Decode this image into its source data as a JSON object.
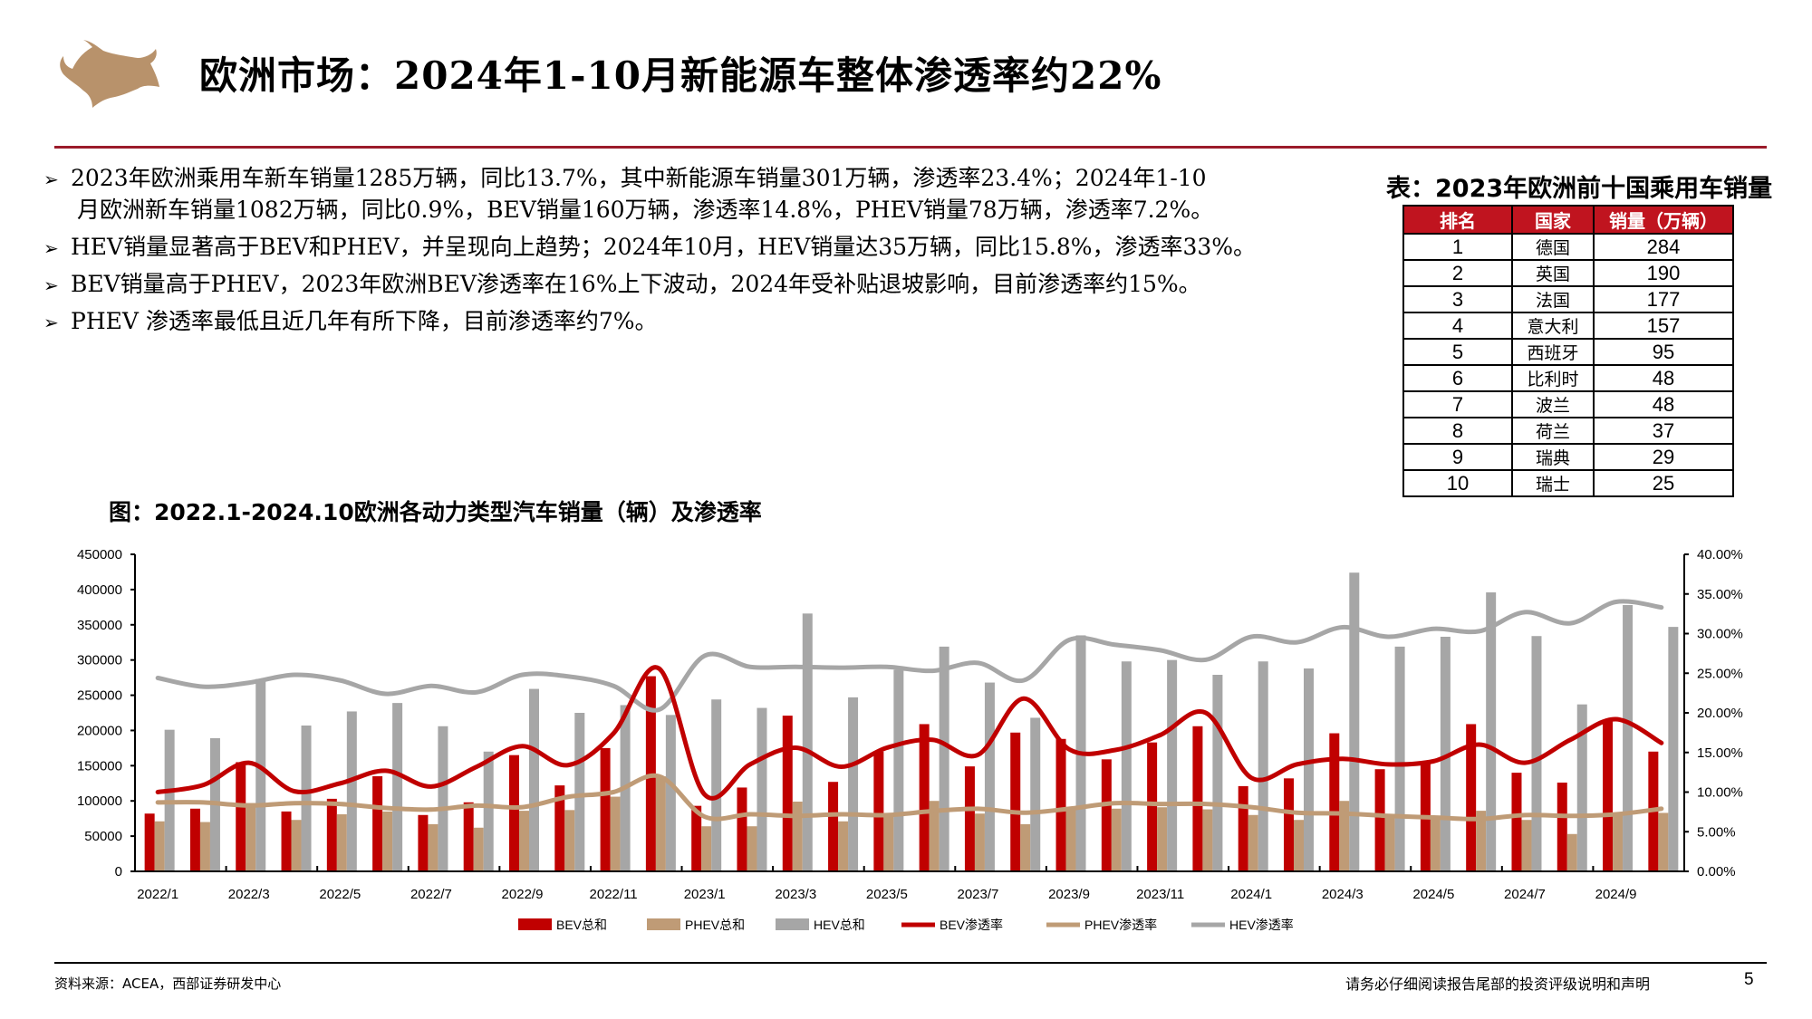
{
  "header": {
    "title": "欧洲市场：2024年1-10月新能源车整体渗透率约22%",
    "logo": "bull-logo"
  },
  "bullets": [
    {
      "line1": "2023年欧洲乘用车新车销量1285万辆，同比13.7%，其中新能源车销量301万辆，渗透率23.4%；2024年1-10",
      "line2": "月欧洲新车销量1082万辆，同比0.9%，BEV销量160万辆，渗透率14.8%，PHEV销量78万辆，渗透率7.2%。"
    },
    {
      "line1": "HEV销量显著高于BEV和PHEV，并呈现向上趋势；2024年10月，HEV销量达35万辆，同比15.8%，渗透率33%。"
    },
    {
      "line1": "BEV销量高于PHEV，2023年欧洲BEV渗透率在16%上下波动，2024年受补贴退坡影响，目前渗透率约15%。"
    },
    {
      "line1": "PHEV 渗透率最低且近几年有所下降，目前渗透率约7%。"
    }
  ],
  "table": {
    "title": "表：2023年欧洲前十国乘用车销量",
    "headers": [
      "排名",
      "国家",
      "销量（万辆）"
    ],
    "header_color": "#c0141f",
    "rows": [
      [
        "1",
        "德国",
        "284"
      ],
      [
        "2",
        "英国",
        "190"
      ],
      [
        "3",
        "法国",
        "177"
      ],
      [
        "4",
        "意大利",
        "157"
      ],
      [
        "5",
        "西班牙",
        "95"
      ],
      [
        "6",
        "比利时",
        "48"
      ],
      [
        "7",
        "波兰",
        "48"
      ],
      [
        "8",
        "荷兰",
        "37"
      ],
      [
        "9",
        "瑞典",
        "29"
      ],
      [
        "10",
        "瑞士",
        "25"
      ]
    ]
  },
  "chart_title": "图：2022.1-2024.10欧洲各动力类型汽车销量（辆）及渗透率",
  "chart_data": {
    "type": "bar+line",
    "x": [
      "2022/1",
      "2022/2",
      "2022/3",
      "2022/4",
      "2022/5",
      "2022/6",
      "2022/7",
      "2022/8",
      "2022/9",
      "2022/10",
      "2022/11",
      "2022/12",
      "2023/1",
      "2023/2",
      "2023/3",
      "2023/4",
      "2023/5",
      "2023/6",
      "2023/7",
      "2023/8",
      "2023/9",
      "2023/10",
      "2023/11",
      "2023/12",
      "2024/1",
      "2024/2",
      "2024/3",
      "2024/4",
      "2024/5",
      "2024/6",
      "2024/7",
      "2024/8",
      "2024/9",
      "2024/10"
    ],
    "x_tick_labels": [
      "2022/1",
      "2022/3",
      "2022/5",
      "2022/7",
      "2022/9",
      "2022/11",
      "2023/1",
      "2023/3",
      "2023/5",
      "2023/7",
      "2023/9",
      "2023/11",
      "2024/1",
      "2024/3",
      "2024/5",
      "2024/7",
      "2024/9"
    ],
    "y_left": {
      "range": [
        0,
        450000
      ],
      "ticks": [
        "0",
        "50000",
        "100000",
        "150000",
        "200000",
        "250000",
        "300000",
        "350000",
        "400000",
        "450000"
      ]
    },
    "y_right": {
      "range": [
        0,
        40
      ],
      "ticks": [
        "0.00%",
        "5.00%",
        "10.00%",
        "15.00%",
        "20.00%",
        "25.00%",
        "30.00%",
        "35.00%",
        "40.00%"
      ]
    },
    "grid": false,
    "legend_position": "bottom",
    "bar_series": [
      {
        "name": "BEV总和",
        "color": "#c00000",
        "values": [
          82000,
          89000,
          155000,
          85000,
          103000,
          135000,
          80000,
          98000,
          165000,
          122000,
          175000,
          277000,
          93000,
          119000,
          221000,
          127000,
          170000,
          209000,
          149000,
          197000,
          188000,
          159000,
          183000,
          206000,
          121000,
          132000,
          196000,
          145000,
          154000,
          209000,
          140000,
          126000,
          215000,
          170000
        ]
      },
      {
        "name": "PHEV总和",
        "color": "#bf9b76",
        "values": [
          71000,
          70000,
          97000,
          73000,
          81000,
          85000,
          67000,
          62000,
          86000,
          87000,
          106000,
          135000,
          64000,
          64000,
          99000,
          71000,
          82000,
          100000,
          82000,
          67000,
          88000,
          89000,
          91000,
          88000,
          80000,
          73000,
          100000,
          77000,
          77000,
          86000,
          73000,
          53000,
          82000,
          83000
        ]
      },
      {
        "name": "HEV总和",
        "color": "#a6a6a6",
        "values": [
          201000,
          189000,
          273000,
          207000,
          227000,
          239000,
          206000,
          170000,
          259000,
          225000,
          236000,
          222000,
          244000,
          232000,
          366000,
          247000,
          286000,
          319000,
          268000,
          218000,
          335000,
          298000,
          300000,
          279000,
          298000,
          288000,
          424000,
          319000,
          333000,
          396000,
          334000,
          237000,
          378000,
          347000
        ]
      }
    ],
    "line_series": [
      {
        "name": "BEV渗透率",
        "color": "#c00000",
        "values": [
          10.0,
          10.9,
          13.7,
          10.1,
          11.1,
          12.7,
          10.7,
          13.2,
          15.8,
          13.4,
          17.4,
          25.6,
          9.7,
          13.5,
          15.6,
          13.2,
          15.6,
          16.6,
          14.7,
          21.8,
          15.4,
          15.3,
          17.2,
          20.0,
          11.8,
          13.5,
          14.2,
          13.5,
          13.9,
          16.0,
          13.7,
          16.6,
          19.2,
          16.2
        ]
      },
      {
        "name": "PHEV渗透率",
        "color": "#bf9b76",
        "values": [
          8.7,
          8.7,
          8.3,
          8.6,
          8.5,
          8.0,
          7.8,
          8.3,
          8.1,
          9.4,
          10.0,
          12.0,
          6.9,
          7.2,
          7.0,
          7.2,
          7.1,
          7.6,
          7.9,
          7.4,
          7.9,
          8.6,
          8.5,
          8.5,
          8.1,
          7.4,
          7.3,
          7.0,
          6.8,
          6.6,
          7.1,
          7.0,
          7.2,
          7.9
        ]
      },
      {
        "name": "HEV渗透率",
        "color": "#a6a6a6",
        "values": [
          24.4,
          23.3,
          23.8,
          24.8,
          24.1,
          22.4,
          23.4,
          22.6,
          24.8,
          24.6,
          23.4,
          20.4,
          27.2,
          25.8,
          25.8,
          25.7,
          25.8,
          25.3,
          26.3,
          24.1,
          29.2,
          28.6,
          27.9,
          26.7,
          29.6,
          28.9,
          30.8,
          29.6,
          30.6,
          30.3,
          32.7,
          31.3,
          34.0,
          33.3
        ]
      }
    ]
  },
  "footer": {
    "source": "资料来源：ACEA，西部证券研发中心",
    "disclaimer": "请务必仔细阅读报告尾部的投资评级说明和声明",
    "page_number": "5"
  }
}
